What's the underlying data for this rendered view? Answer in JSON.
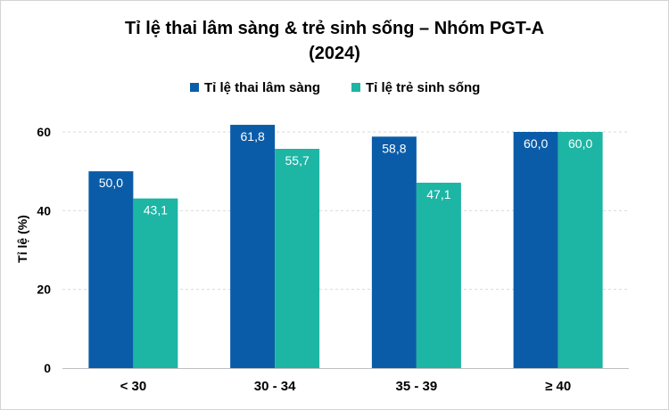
{
  "chart_data": {
    "type": "bar",
    "title_line1": "Tỉ lệ thai lâm sàng & trẻ sinh sống – Nhóm PGT-A",
    "title_line2": "(2024)",
    "xlabel": "",
    "ylabel": "Tỉ lệ (%)",
    "categories": [
      "< 30",
      "30 - 34",
      "35 - 39",
      "≥ 40"
    ],
    "series": [
      {
        "name": "Tỉ lệ thai lâm sàng",
        "color": "#0a5ca8",
        "values": [
          50.0,
          61.8,
          58.8,
          60.0
        ],
        "labels": [
          "50,0",
          "61,8",
          "58,8",
          "60,0"
        ]
      },
      {
        "name": "Tỉ lệ trẻ sinh sống",
        "color": "#1db5a4",
        "values": [
          43.1,
          55.7,
          47.1,
          60.0
        ],
        "labels": [
          "43,1",
          "55,7",
          "47,1",
          "60,0"
        ]
      }
    ],
    "ylim": [
      0,
      60
    ],
    "yticks": [
      "0",
      "20",
      "40",
      "60"
    ],
    "ytick_values": [
      0,
      20,
      40,
      60
    ],
    "legend_position": "top",
    "grid": "horizontal dashed"
  }
}
